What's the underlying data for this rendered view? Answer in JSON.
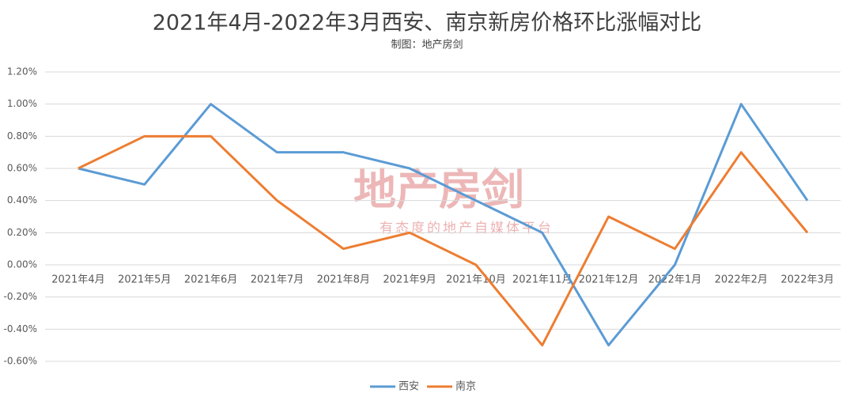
{
  "chart_data": {
    "type": "line",
    "title": "2021年4月-2022年3月西安、南京新房价格环比涨幅对比",
    "subtitle": "制图：地产房剑",
    "watermark": [
      "地产房剑",
      "有态度的地产自媒体平台"
    ],
    "categories": [
      "2021年4月",
      "2021年5月",
      "2021年6月",
      "2021年7月",
      "2021年8月",
      "2021年9月",
      "2021年10月",
      "2021年11月",
      "2021年12月",
      "2022年1月",
      "2022年2月",
      "2022年3月"
    ],
    "series": [
      {
        "name": "西安",
        "color": "#5b9bd5",
        "values": [
          0.6,
          0.5,
          1.0,
          0.7,
          0.7,
          0.6,
          0.4,
          0.2,
          -0.5,
          0.0,
          1.0,
          0.4
        ]
      },
      {
        "name": "南京",
        "color": "#ed7d31",
        "values": [
          0.6,
          0.8,
          0.8,
          0.4,
          0.1,
          0.2,
          0.0,
          -0.5,
          0.3,
          0.1,
          0.7,
          0.2
        ]
      }
    ],
    "ylim": [
      -0.6,
      1.2
    ],
    "yticks": [
      {
        "value": -0.6,
        "label": "-0.60%"
      },
      {
        "value": -0.4,
        "label": "-0.40%"
      },
      {
        "value": -0.2,
        "label": "-0.20%"
      },
      {
        "value": 0,
        "label": "0.00%"
      },
      {
        "value": 0.2,
        "label": "0.20%"
      },
      {
        "value": 0.4,
        "label": "0.40%"
      },
      {
        "value": 0.6,
        "label": "0.60%"
      },
      {
        "value": 0.8,
        "label": "0.80%"
      },
      {
        "value": 1.0,
        "label": "1.00%"
      },
      {
        "value": 1.2,
        "label": "1.20%"
      }
    ],
    "grid": true,
    "legend": "bottom"
  }
}
